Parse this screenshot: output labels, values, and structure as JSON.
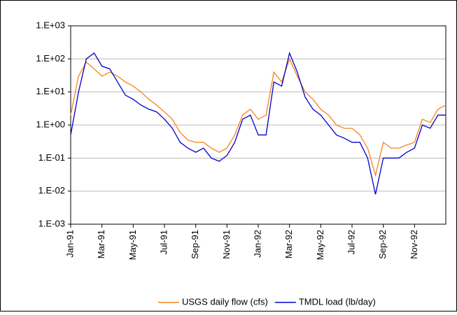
{
  "chart_data": {
    "type": "line",
    "x": [
      0,
      0.5,
      1,
      1.5,
      2,
      2.5,
      3,
      3.5,
      4,
      4.5,
      5,
      5.5,
      6,
      6.5,
      7,
      7.5,
      8,
      8.5,
      9,
      9.5,
      10,
      10.5,
      11,
      11.5,
      12,
      12.5,
      13,
      13.5,
      14,
      14.5,
      15,
      15.5,
      16,
      16.5,
      17,
      17.5,
      18,
      18.5,
      19,
      19.5,
      20,
      20.5,
      21,
      21.5,
      22,
      22.5,
      23,
      23.5,
      24
    ],
    "series": [
      {
        "name": "USGS daily flow (cfs)",
        "color": "#f5841f",
        "values": [
          2,
          30,
          80,
          50,
          30,
          40,
          30,
          20,
          15,
          10,
          6,
          4,
          2.5,
          1.5,
          0.6,
          0.35,
          0.3,
          0.3,
          0.2,
          0.15,
          0.2,
          0.5,
          2,
          3,
          1.5,
          2,
          40,
          20,
          100,
          30,
          10,
          6,
          3,
          2,
          1,
          0.8,
          0.8,
          0.5,
          0.2,
          0.03,
          0.3,
          0.2,
          0.2,
          0.25,
          0.3,
          1.5,
          1.2,
          3,
          4
        ]
      },
      {
        "name": "TMDL load (lb/day)",
        "color": "#0000cc",
        "values": [
          0.5,
          10,
          100,
          150,
          60,
          50,
          20,
          8,
          6,
          4,
          3,
          2.5,
          1.5,
          0.8,
          0.3,
          0.2,
          0.15,
          0.2,
          0.1,
          0.08,
          0.12,
          0.3,
          1.5,
          2,
          0.5,
          0.5,
          20,
          15,
          150,
          40,
          7,
          3,
          2,
          1,
          0.5,
          0.4,
          0.3,
          0.3,
          0.1,
          0.008,
          0.1,
          0.1,
          0.1,
          0.15,
          0.2,
          1,
          0.8,
          2,
          2
        ]
      }
    ],
    "xlim": [
      0,
      24
    ],
    "xticks": [
      {
        "value": 0,
        "label": "Jan-91"
      },
      {
        "value": 2,
        "label": "Mar-91"
      },
      {
        "value": 4,
        "label": "May-91"
      },
      {
        "value": 6,
        "label": "Jul-91"
      },
      {
        "value": 8,
        "label": "Sep-91"
      },
      {
        "value": 10,
        "label": "Nov-91"
      },
      {
        "value": 12,
        "label": "Jan-92"
      },
      {
        "value": 14,
        "label": "Mar-92"
      },
      {
        "value": 16,
        "label": "May-92"
      },
      {
        "value": 18,
        "label": "Jul-92"
      },
      {
        "value": 20,
        "label": "Sep-92"
      },
      {
        "value": 22,
        "label": "Nov-92"
      }
    ],
    "ylim": [
      0.001,
      1000
    ],
    "yticks": [
      {
        "value": 0.001,
        "label": "1.E-03"
      },
      {
        "value": 0.01,
        "label": "1.E-02"
      },
      {
        "value": 0.1,
        "label": "1.E-01"
      },
      {
        "value": 1,
        "label": "1.E+00"
      },
      {
        "value": 10,
        "label": "1.E+01"
      },
      {
        "value": 100,
        "label": "1.E+02"
      },
      {
        "value": 1000,
        "label": "1.E+03"
      }
    ],
    "log_y": true,
    "grid": true,
    "legend": "bottom"
  }
}
